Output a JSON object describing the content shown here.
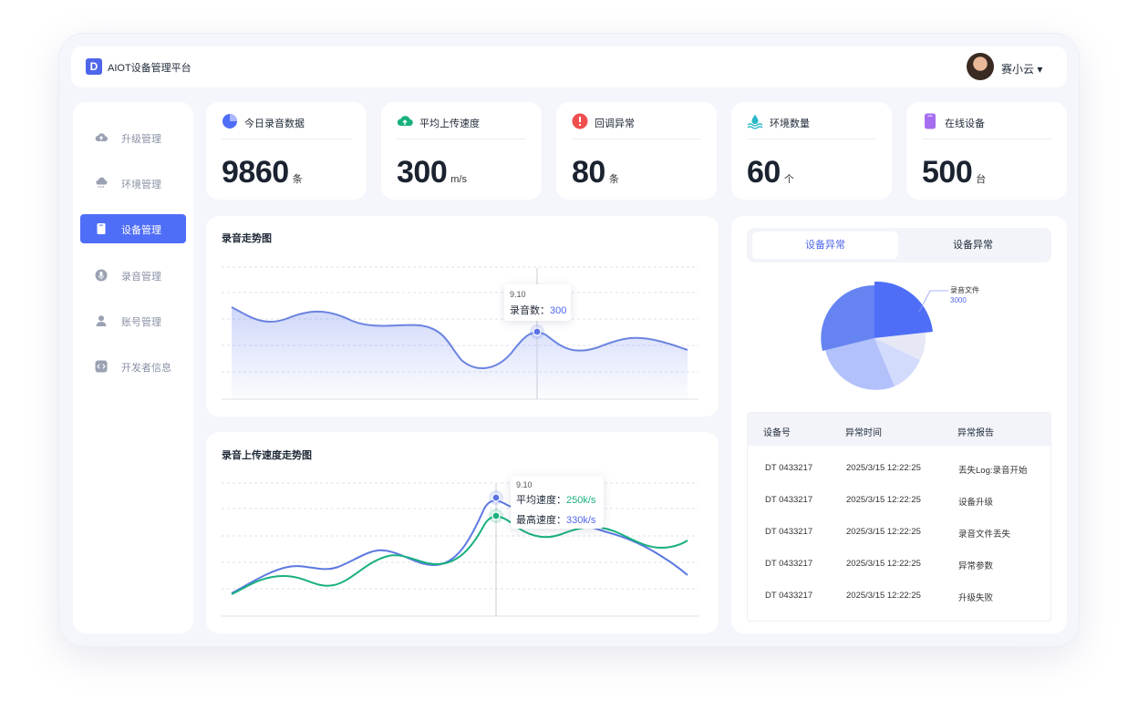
{
  "header": {
    "logo_letter": "D",
    "app_title": "AIOT设备管理平台",
    "username": "赛小云 ▾"
  },
  "sidebar": {
    "items": [
      {
        "label": "升级管理",
        "icon": "cloud-upload-icon",
        "active": false
      },
      {
        "label": "环境管理",
        "icon": "cloud-rain-icon",
        "active": false
      },
      {
        "label": "设备管理",
        "icon": "device-icon",
        "active": true
      },
      {
        "label": "录音管理",
        "icon": "microphone-icon",
        "active": false
      },
      {
        "label": "账号管理",
        "icon": "user-icon",
        "active": false
      },
      {
        "label": "开发者信息",
        "icon": "code-icon",
        "active": false
      }
    ]
  },
  "stats": [
    {
      "label": "今日录音数据",
      "value": "9860",
      "unit": "条",
      "icon": "pie-icon",
      "color": "#4f6ef7"
    },
    {
      "label": "平均上传速度",
      "value": "300",
      "unit": "m/s",
      "icon": "cloud-upload-icon",
      "color": "#19b07f"
    },
    {
      "label": "回调异常",
      "value": "80",
      "unit": "条",
      "icon": "alert-icon",
      "color": "#f04f4f"
    },
    {
      "label": "环境数量",
      "value": "60",
      "unit": "个",
      "icon": "water-icon",
      "color": "#2bb7c7"
    },
    {
      "label": "在线设备",
      "value": "500",
      "unit": "台",
      "icon": "device-icon",
      "color": "#a66cf0"
    }
  ],
  "recording_chart": {
    "title": "录音走势图",
    "tooltip": {
      "date": "9.10",
      "label": "录音数：",
      "value": "300"
    }
  },
  "speed_chart": {
    "title": "录音上传速度走势图",
    "tooltip": {
      "date": "9.10",
      "avg_label": "平均速度：",
      "avg_value": "250k/s",
      "max_label": "最高速度：",
      "max_value": "330k/s"
    }
  },
  "right_panel": {
    "tabs": [
      {
        "label": "设备异常"
      },
      {
        "label": "设备异常"
      }
    ],
    "pie": {
      "label": "录音文件",
      "value": "3000"
    },
    "table": {
      "headers": [
        "设备号",
        "异常时间",
        "异常报告"
      ],
      "rows": [
        [
          "DT 0433217",
          "2025/3/15  12:22:25",
          "丢失Log:录音开始"
        ],
        [
          "DT 0433217",
          "2025/3/15  12:22:25",
          "设备升级"
        ],
        [
          "DT 0433217",
          "2025/3/15  12:22:25",
          "录音文件丢失"
        ],
        [
          "DT 0433217",
          "2025/3/15  12:22:25",
          "异常参数"
        ],
        [
          "DT 0433217",
          "2025/3/15  12:22:25",
          "升级失败"
        ]
      ]
    }
  },
  "colors": {
    "accent": "#4f6ef7",
    "green": "#19b07f",
    "background": "#f4f6fb"
  }
}
